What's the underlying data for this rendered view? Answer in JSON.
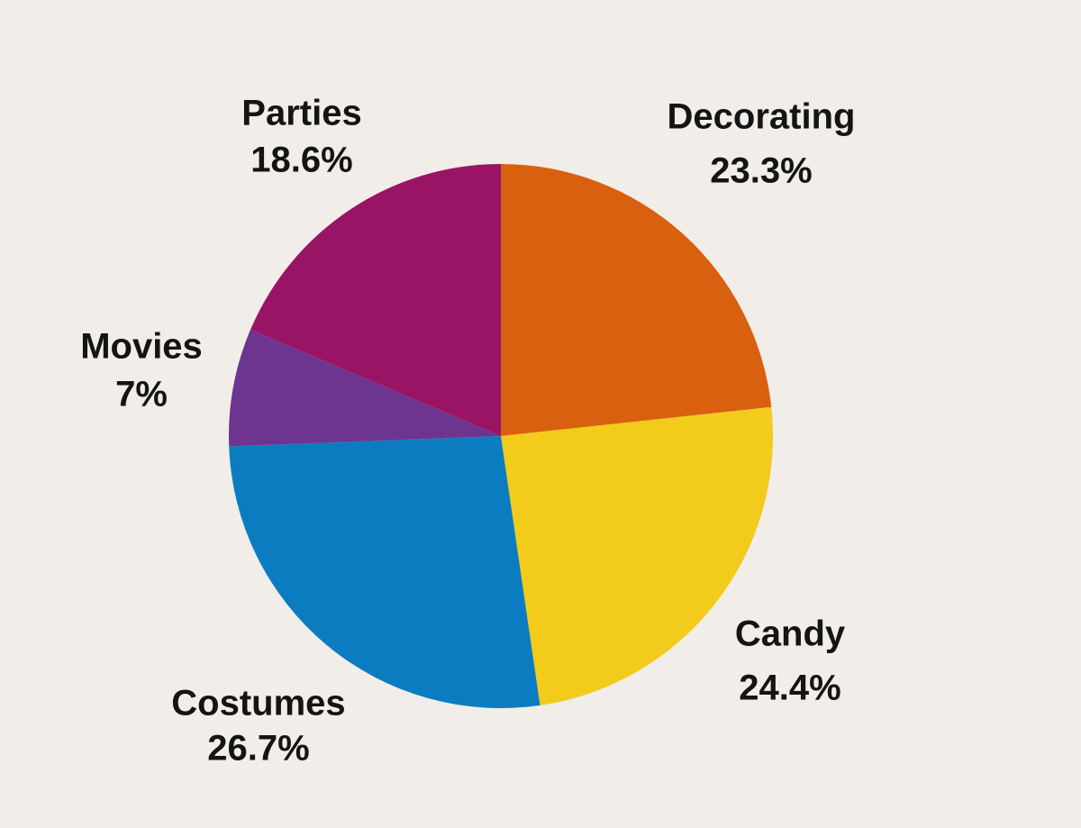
{
  "chart_data": {
    "type": "pie",
    "categories": [
      "Decorating",
      "Candy",
      "Costumes",
      "Movies",
      "Parties"
    ],
    "values": [
      23.3,
      24.4,
      26.7,
      7,
      18.6
    ],
    "value_labels": [
      "23.3%",
      "24.4%",
      "26.7%",
      "7%",
      "18.6%"
    ],
    "colors": [
      "#d9600f",
      "#f2cb1b",
      "#0b7cc0",
      "#6d3590",
      "#9a1466"
    ]
  }
}
